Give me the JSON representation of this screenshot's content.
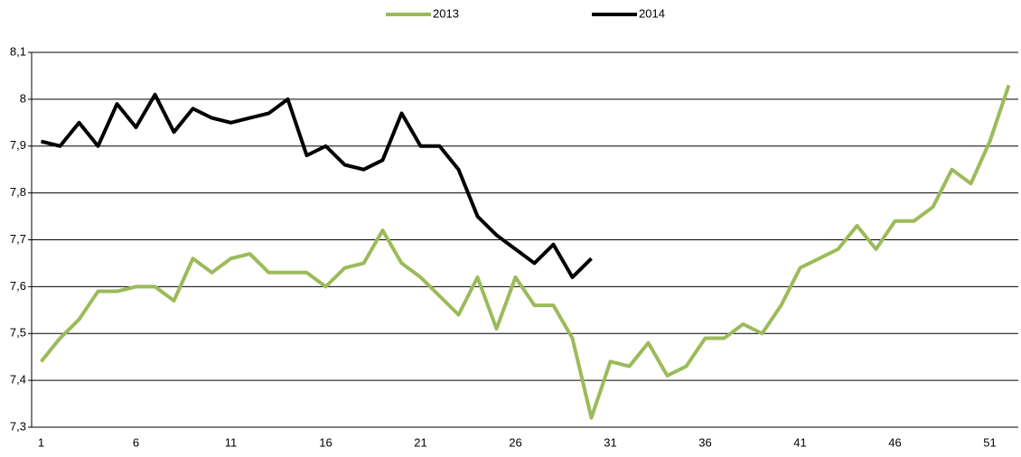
{
  "chart_data": {
    "type": "line",
    "categories": [
      1,
      null,
      null,
      null,
      null,
      6,
      null,
      null,
      null,
      null,
      11,
      null,
      null,
      null,
      null,
      16,
      null,
      null,
      null,
      null,
      21,
      null,
      null,
      null,
      null,
      26,
      null,
      null,
      null,
      null,
      31,
      null,
      null,
      null,
      null,
      36,
      null,
      null,
      null,
      null,
      41,
      null,
      null,
      null,
      null,
      46,
      null,
      null,
      null,
      null,
      51,
      null
    ],
    "series": [
      {
        "name": "2013",
        "color": "#9bbb59",
        "values": [
          7.44,
          7.49,
          7.53,
          7.59,
          7.59,
          7.6,
          7.6,
          7.57,
          7.66,
          7.63,
          7.66,
          7.67,
          7.63,
          7.63,
          7.63,
          7.6,
          7.64,
          7.65,
          7.72,
          7.65,
          7.62,
          7.58,
          7.54,
          7.62,
          7.51,
          7.62,
          7.56,
          7.56,
          7.49,
          7.32,
          7.44,
          7.43,
          7.48,
          7.41,
          7.43,
          7.49,
          7.49,
          7.52,
          7.5,
          7.56,
          7.64,
          7.66,
          7.68,
          7.73,
          7.68,
          7.74,
          7.74,
          7.77,
          7.85,
          7.82,
          7.91,
          8.03
        ]
      },
      {
        "name": "2014",
        "color": "#000000",
        "values": [
          7.91,
          7.9,
          7.95,
          7.9,
          7.99,
          7.94,
          8.01,
          7.93,
          7.98,
          7.96,
          7.95,
          7.96,
          7.97,
          8.0,
          7.88,
          7.9,
          7.86,
          7.85,
          7.87,
          7.97,
          7.9,
          7.9,
          7.85,
          7.75,
          7.71,
          7.68,
          7.65,
          7.69,
          7.62,
          7.66,
          null,
          null,
          null,
          null,
          null,
          null,
          null,
          null,
          null,
          null,
          null,
          null,
          null,
          null,
          null,
          null,
          null,
          null,
          null,
          null,
          null,
          null
        ]
      }
    ],
    "ylim": [
      7.3,
      8.1
    ],
    "yticks": [
      {
        "value": 7.3,
        "label": "7,3"
      },
      {
        "value": 7.4,
        "label": "7,4"
      },
      {
        "value": 7.5,
        "label": "7,5"
      },
      {
        "value": 7.6,
        "label": "7,6"
      },
      {
        "value": 7.7,
        "label": "7,7"
      },
      {
        "value": 7.8,
        "label": "7,8"
      },
      {
        "value": 7.9,
        "label": "7,9"
      },
      8,
      {
        "value": 8.1,
        "label": "8,1"
      }
    ],
    "grid": true,
    "legend": "top"
  }
}
